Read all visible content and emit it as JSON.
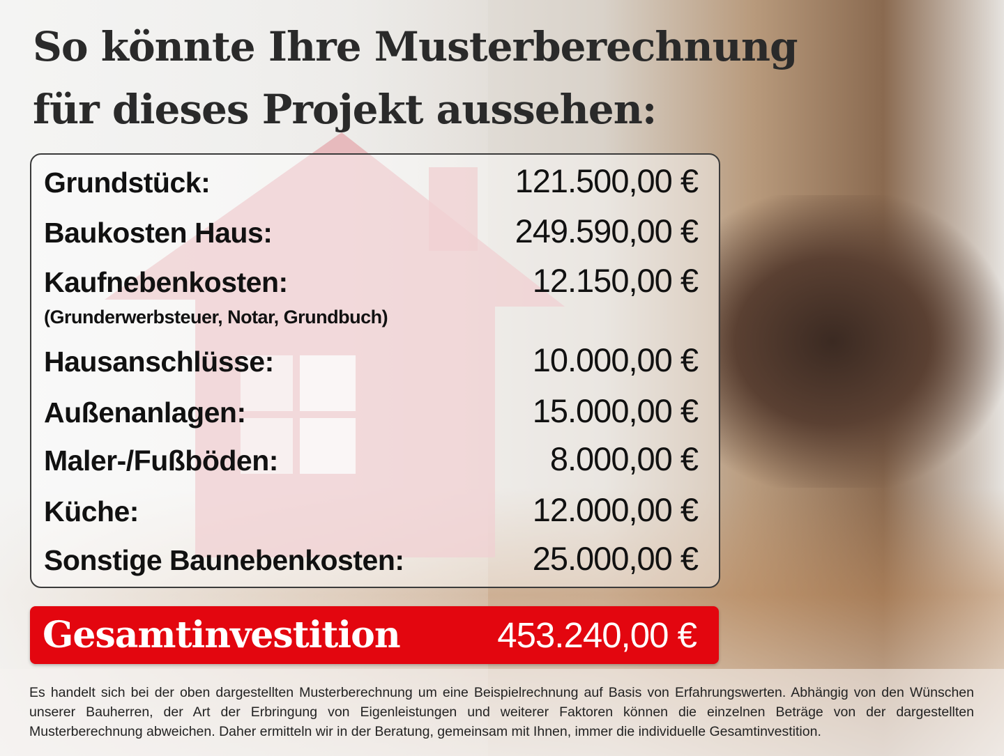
{
  "title": {
    "line1": "So könnte Ihre Musterberechnung",
    "line2": "für dieses Projekt aussehen:"
  },
  "items": [
    {
      "label": "Grundstück:",
      "value": "121.500,00 €"
    },
    {
      "label": "Baukosten Haus:",
      "value": "249.590,00 €"
    },
    {
      "label": "Kaufnebenkosten:",
      "value": "12.150,00 €",
      "note": "(Grunderwerbsteuer, Notar, Grundbuch)"
    },
    {
      "label": "Hausanschlüsse:",
      "value": "10.000,00 €"
    },
    {
      "label": "Außenanlagen:",
      "value": "15.000,00 €"
    },
    {
      "label": "Maler-/Fußböden:",
      "value": "8.000,00 €"
    },
    {
      "label": "Küche:",
      "value": "12.000,00 €"
    },
    {
      "label": "Sonstige Baunebenkosten:",
      "value": "25.000,00 €"
    }
  ],
  "total": {
    "label": "Gesamtinvestition",
    "value": "453.240,00 €"
  },
  "disclaimer": "Es handelt sich bei der oben dargestellten Musterberechnung um eine Beispielrechnung auf Basis von Erfahrungswerten. Abhängig von den Wünschen unserer Bauherren, der Art der Erbringung von Eigenleistungen und weiterer Faktoren können die einzelnen Beträge von der dargestellten Musterberechnung abweichen. Daher ermitteln wir in der Beratung, gemeinsam mit Ihnen, immer die individuelle Gesamtinvestition.",
  "colors": {
    "accent": "#e3060f",
    "text": "#2a2a2a"
  }
}
